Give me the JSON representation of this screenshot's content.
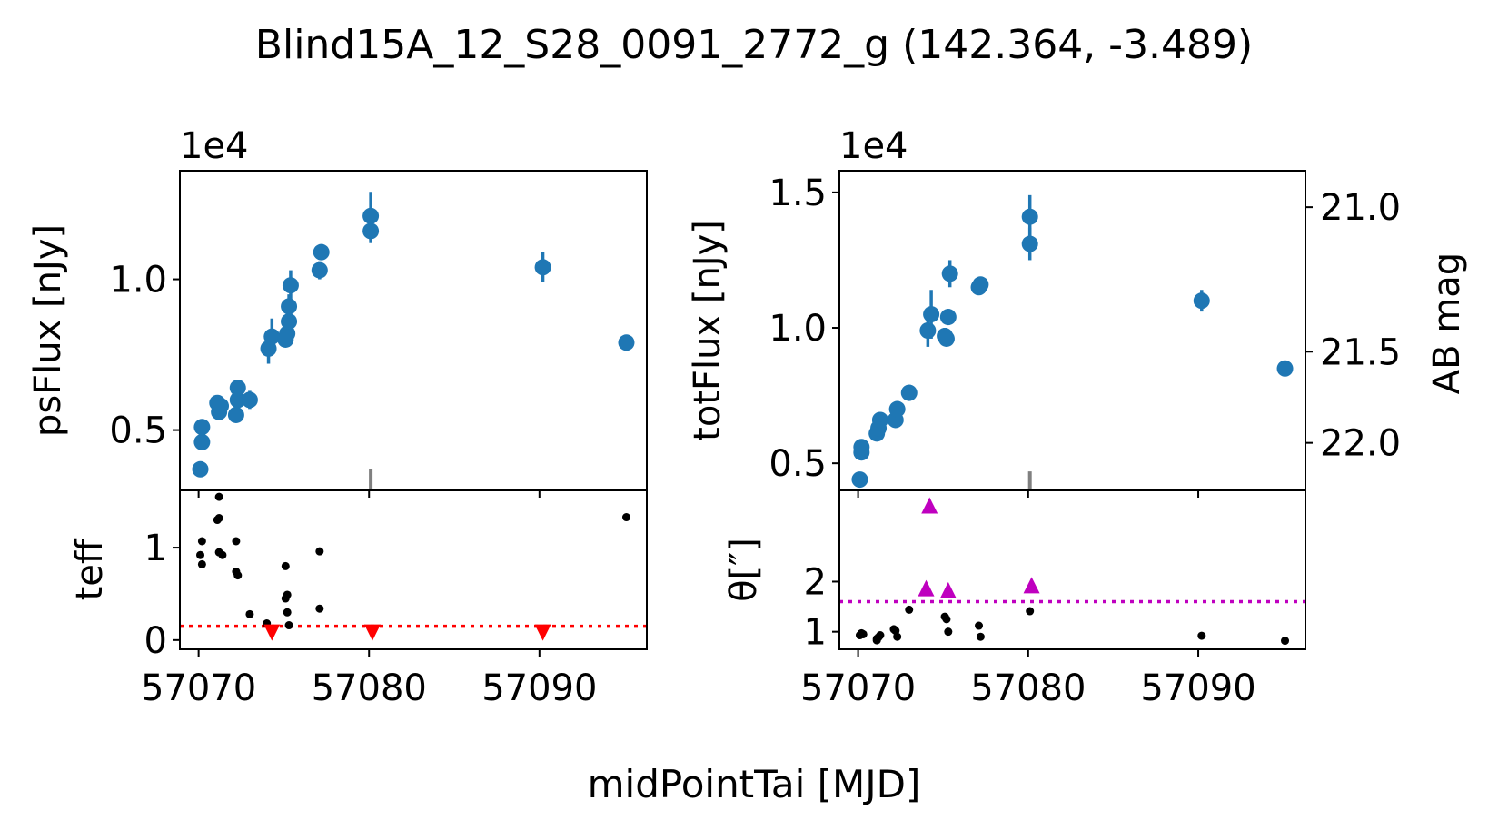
{
  "figure": {
    "title": "Blind15A_12_S28_0091_2772_g (142.364, -3.489)",
    "xlabel": "midPointTai [MJD]"
  },
  "colors": {
    "points": "#1f77b4",
    "meta": "#000000",
    "teff_limit": "#ff0000",
    "theta_limit": "#bf00bf",
    "marker": "#808080"
  },
  "chart_data": [
    {
      "id": "psflux",
      "type": "scatter",
      "ylabel": "psFlux [nJy]",
      "scale_label": "1e4",
      "xlim": [
        57068.9,
        57096.3
      ],
      "ylim": [
        0.3,
        1.36
      ],
      "xticks": [
        57070,
        57080,
        57090
      ],
      "xtick_labels": [
        "57070",
        "57080",
        "57090"
      ],
      "yticks": [
        0.5,
        1.0
      ],
      "ytick_labels": [
        "0.5",
        "1.0"
      ],
      "marker_line": {
        "x": 57080.1,
        "y_from": 0.3,
        "y_to": 0.37
      },
      "points": [
        {
          "x": 57070.1,
          "y": 0.37,
          "err": 0.0
        },
        {
          "x": 57070.2,
          "y": 0.46,
          "err": 0.0
        },
        {
          "x": 57070.2,
          "y": 0.51,
          "err": 0.0
        },
        {
          "x": 57071.1,
          "y": 0.59,
          "err": 0.0
        },
        {
          "x": 57071.2,
          "y": 0.56,
          "err": 0.0
        },
        {
          "x": 57071.3,
          "y": 0.58,
          "err": 0.0
        },
        {
          "x": 57072.2,
          "y": 0.55,
          "err": 0.0
        },
        {
          "x": 57072.3,
          "y": 0.6,
          "err": 0.0
        },
        {
          "x": 57072.3,
          "y": 0.64,
          "err": 0.0
        },
        {
          "x": 57073.0,
          "y": 0.6,
          "err": 0.03
        },
        {
          "x": 57074.1,
          "y": 0.77,
          "err": 0.05
        },
        {
          "x": 57074.3,
          "y": 0.81,
          "err": 0.06
        },
        {
          "x": 57075.1,
          "y": 0.8,
          "err": 0.0
        },
        {
          "x": 57075.2,
          "y": 0.82,
          "err": 0.0
        },
        {
          "x": 57075.3,
          "y": 0.86,
          "err": 0.0
        },
        {
          "x": 57075.3,
          "y": 0.91,
          "err": 0.04
        },
        {
          "x": 57075.4,
          "y": 0.98,
          "err": 0.05
        },
        {
          "x": 57077.1,
          "y": 1.03,
          "err": 0.03
        },
        {
          "x": 57077.2,
          "y": 1.09,
          "err": 0.0
        },
        {
          "x": 57080.1,
          "y": 1.16,
          "err": 0.04
        },
        {
          "x": 57080.1,
          "y": 1.21,
          "err": 0.08
        },
        {
          "x": 57090.2,
          "y": 1.04,
          "err": 0.05
        },
        {
          "x": 57095.1,
          "y": 0.79,
          "err": 0.0
        }
      ]
    },
    {
      "id": "totflux",
      "type": "scatter",
      "ylabel": "totFlux [nJy]",
      "y2label": "AB mag",
      "scale_label": "1e4",
      "xlim": [
        57068.9,
        57096.3
      ],
      "ylim": [
        0.4,
        1.58
      ],
      "xticks": [
        57070,
        57080,
        57090
      ],
      "xtick_labels": [
        "57070",
        "57080",
        "57090"
      ],
      "yticks": [
        0.5,
        1.0,
        1.5
      ],
      "ytick_labels": [
        "0.5",
        "1.0",
        "1.5"
      ],
      "y2ticks": [
        21.0,
        21.5,
        22.0
      ],
      "y2tick_labels": [
        "21.0",
        "21.5",
        "22.0"
      ],
      "marker_line": {
        "x": 57080.1,
        "y_from": 0.4,
        "y_to": 0.47
      },
      "points": [
        {
          "x": 57070.1,
          "y": 0.44,
          "err": 0.0
        },
        {
          "x": 57070.2,
          "y": 0.54,
          "err": 0.0
        },
        {
          "x": 57070.2,
          "y": 0.56,
          "err": 0.0
        },
        {
          "x": 57071.1,
          "y": 0.61,
          "err": 0.0
        },
        {
          "x": 57071.2,
          "y": 0.63,
          "err": 0.0
        },
        {
          "x": 57071.3,
          "y": 0.66,
          "err": 0.0
        },
        {
          "x": 57072.2,
          "y": 0.66,
          "err": 0.0
        },
        {
          "x": 57072.3,
          "y": 0.7,
          "err": 0.0
        },
        {
          "x": 57073.0,
          "y": 0.76,
          "err": 0.03
        },
        {
          "x": 57074.1,
          "y": 0.99,
          "err": 0.06
        },
        {
          "x": 57074.3,
          "y": 1.05,
          "err": 0.09
        },
        {
          "x": 57075.1,
          "y": 0.97,
          "err": 0.03
        },
        {
          "x": 57075.2,
          "y": 0.96,
          "err": 0.0
        },
        {
          "x": 57075.3,
          "y": 1.04,
          "err": 0.03
        },
        {
          "x": 57075.4,
          "y": 1.2,
          "err": 0.05
        },
        {
          "x": 57077.1,
          "y": 1.15,
          "err": 0.02
        },
        {
          "x": 57077.2,
          "y": 1.16,
          "err": 0.0
        },
        {
          "x": 57080.1,
          "y": 1.31,
          "err": 0.06
        },
        {
          "x": 57080.1,
          "y": 1.41,
          "err": 0.08
        },
        {
          "x": 57090.2,
          "y": 1.1,
          "err": 0.04
        },
        {
          "x": 57095.1,
          "y": 0.85,
          "err": 0.0
        }
      ]
    },
    {
      "id": "teff",
      "type": "scatter",
      "ylabel": "teff",
      "xlim": [
        57068.9,
        57096.3
      ],
      "ylim": [
        -0.1,
        1.62
      ],
      "xticks": [
        57070,
        57080,
        57090
      ],
      "xtick_labels": [
        "57070",
        "57080",
        "57090"
      ],
      "yticks": [
        0,
        1
      ],
      "ytick_labels": [
        "0",
        "1"
      ],
      "threshold": 0.15,
      "points": [
        {
          "x": 57070.1,
          "y": 0.92
        },
        {
          "x": 57070.2,
          "y": 1.07
        },
        {
          "x": 57070.2,
          "y": 0.82
        },
        {
          "x": 57071.1,
          "y": 1.3
        },
        {
          "x": 57071.2,
          "y": 1.55
        },
        {
          "x": 57071.2,
          "y": 0.95
        },
        {
          "x": 57071.4,
          "y": 0.92
        },
        {
          "x": 57071.2,
          "y": 1.32
        },
        {
          "x": 57072.2,
          "y": 1.07
        },
        {
          "x": 57072.2,
          "y": 0.74
        },
        {
          "x": 57072.3,
          "y": 0.7
        },
        {
          "x": 57073.0,
          "y": 0.28
        },
        {
          "x": 57074.0,
          "y": 0.18
        },
        {
          "x": 57075.1,
          "y": 0.8
        },
        {
          "x": 57075.2,
          "y": 0.49
        },
        {
          "x": 57075.1,
          "y": 0.45
        },
        {
          "x": 57075.2,
          "y": 0.3
        },
        {
          "x": 57075.3,
          "y": 0.16
        },
        {
          "x": 57077.1,
          "y": 0.96
        },
        {
          "x": 57077.1,
          "y": 0.34
        },
        {
          "x": 57095.1,
          "y": 1.33
        }
      ],
      "limits": [
        {
          "x": 57074.3,
          "y": 0.08
        },
        {
          "x": 57080.2,
          "y": 0.08
        },
        {
          "x": 57090.2,
          "y": 0.08
        }
      ]
    },
    {
      "id": "theta",
      "type": "scatter",
      "ylabel": "θ[″]",
      "xlim": [
        57068.9,
        57096.3
      ],
      "ylim": [
        0.65,
        3.82
      ],
      "xticks": [
        57070,
        57080,
        57090
      ],
      "xtick_labels": [
        "57070",
        "57080",
        "57090"
      ],
      "yticks": [
        1,
        2
      ],
      "ytick_labels": [
        "1",
        "2"
      ],
      "threshold": 1.6,
      "points": [
        {
          "x": 57070.1,
          "y": 0.93
        },
        {
          "x": 57070.2,
          "y": 0.97
        },
        {
          "x": 57070.3,
          "y": 0.95
        },
        {
          "x": 57071.1,
          "y": 0.83
        },
        {
          "x": 57071.1,
          "y": 0.86
        },
        {
          "x": 57071.2,
          "y": 0.89
        },
        {
          "x": 57071.3,
          "y": 0.93
        },
        {
          "x": 57072.1,
          "y": 1.05
        },
        {
          "x": 57072.2,
          "y": 1.02
        },
        {
          "x": 57072.3,
          "y": 0.9
        },
        {
          "x": 57073.0,
          "y": 1.44
        },
        {
          "x": 57075.1,
          "y": 1.3
        },
        {
          "x": 57075.2,
          "y": 1.25
        },
        {
          "x": 57075.3,
          "y": 1.0
        },
        {
          "x": 57077.1,
          "y": 1.12
        },
        {
          "x": 57077.2,
          "y": 0.9
        },
        {
          "x": 57080.1,
          "y": 1.41
        },
        {
          "x": 57090.2,
          "y": 0.92
        },
        {
          "x": 57095.1,
          "y": 0.82
        }
      ],
      "limits": [
        {
          "x": 57074.0,
          "y": 1.87
        },
        {
          "x": 57074.2,
          "y": 3.52
        },
        {
          "x": 57075.3,
          "y": 1.83
        },
        {
          "x": 57080.2,
          "y": 1.93
        }
      ]
    }
  ]
}
